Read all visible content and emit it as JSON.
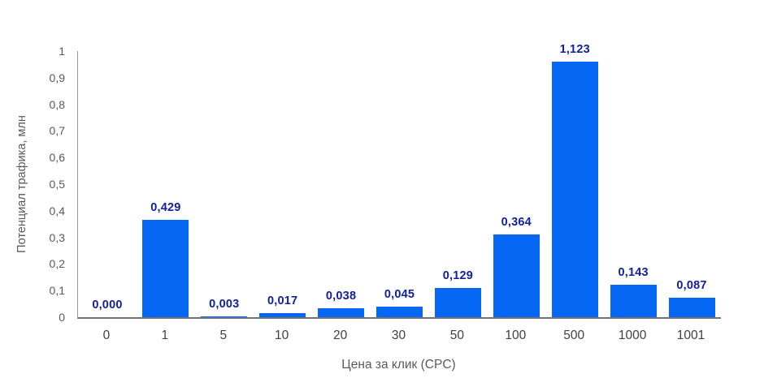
{
  "chart_data": {
    "type": "bar",
    "title": "",
    "xlabel": "Цена за клик (CPC)",
    "ylabel": "Потенциал трафика, млн",
    "categories": [
      "0",
      "1",
      "5",
      "10",
      "20",
      "30",
      "50",
      "100",
      "500",
      "1000",
      "1001"
    ],
    "values": [
      0.0,
      0.429,
      0.003,
      0.017,
      0.038,
      0.045,
      0.129,
      0.364,
      1.123,
      0.143,
      0.087
    ],
    "value_labels": [
      "0,000",
      "0,429",
      "0,003",
      "0,017",
      "0,038",
      "0,045",
      "0,129",
      "0,364",
      "1,123",
      "0,143",
      "0,087"
    ],
    "y_ticks": [
      "0",
      "0,1",
      "0,2",
      "0,3",
      "0,4",
      "0,5",
      "0,6",
      "0,7",
      "0,8",
      "0,9",
      "1"
    ],
    "ylim": [
      0,
      1
    ],
    "bar_display_max": 1.17,
    "grid": false,
    "legend": "none",
    "colors": {
      "bar": "#0667f5",
      "data_label": "#12209a",
      "axis_line": "#9a9a9a",
      "baseline": "#737373",
      "tick_label_y": "#595959",
      "tick_label_x": "#404040",
      "axis_title": "#5a5a5a"
    }
  }
}
